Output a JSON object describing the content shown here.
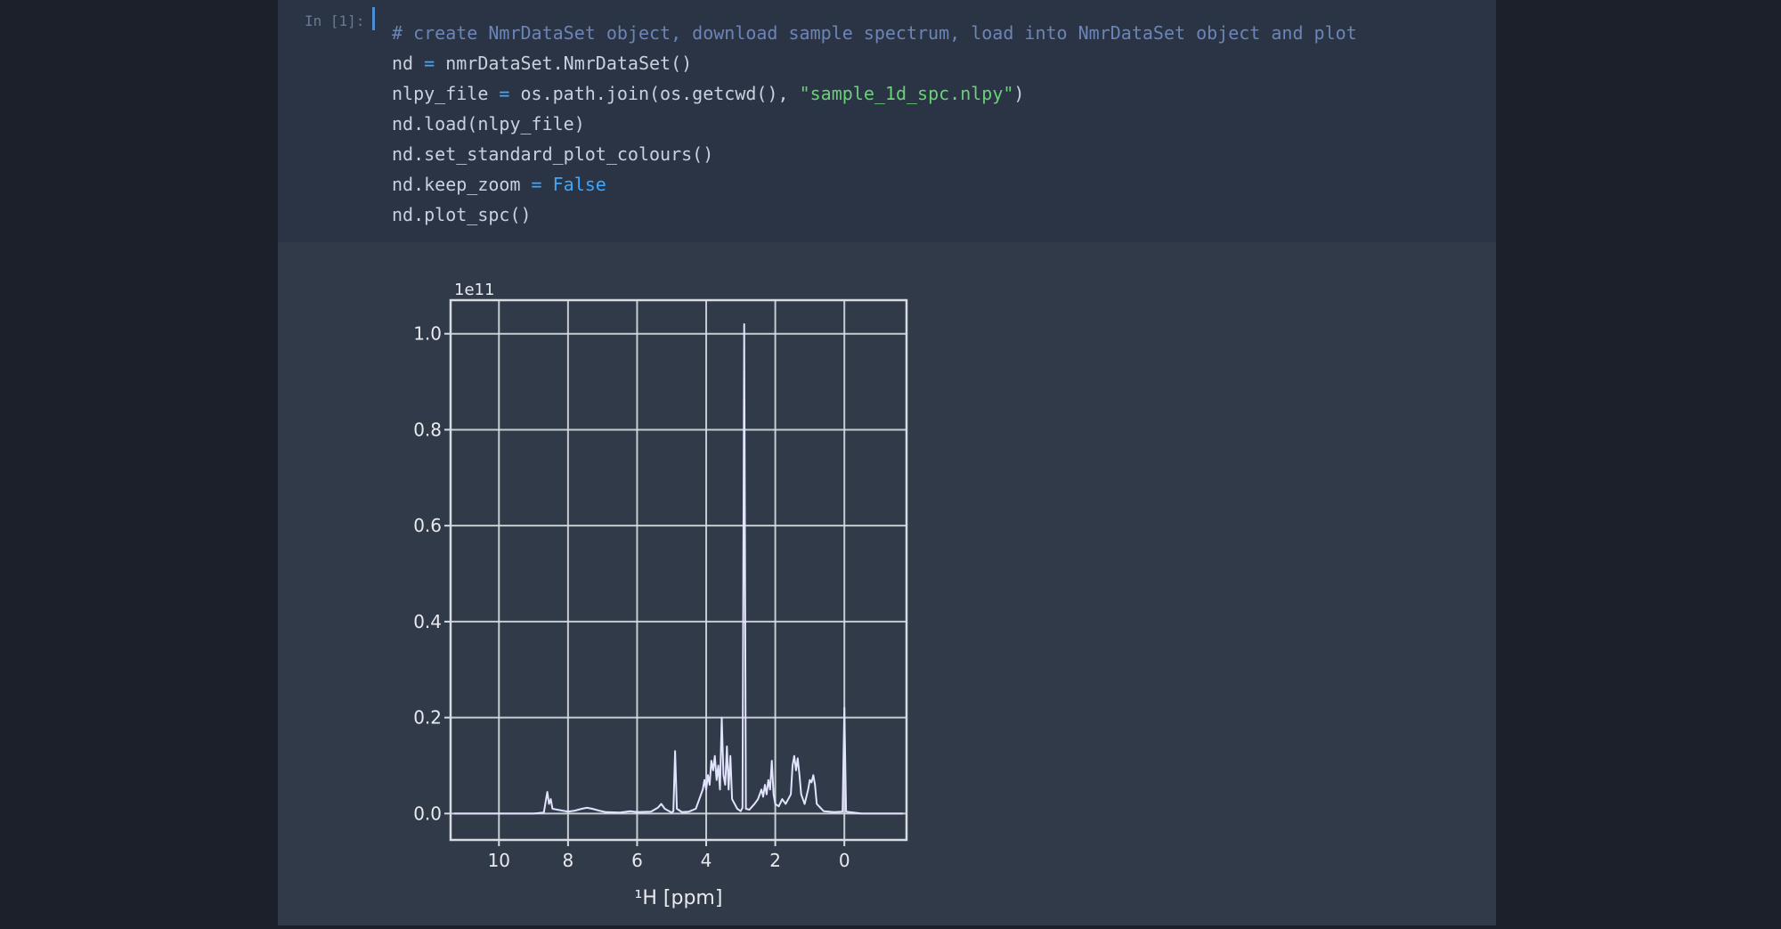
{
  "cell": {
    "prompt": "In [1]:",
    "code_lines": [
      [
        {
          "t": "comment",
          "v": "# create NmrDataSet object, download sample spectrum, load into NmrDataSet object and plot"
        }
      ],
      [
        {
          "t": "plain",
          "v": "nd "
        },
        {
          "t": "op",
          "v": "="
        },
        {
          "t": "plain",
          "v": " nmrDataSet.NmrDataSet()"
        }
      ],
      [
        {
          "t": "plain",
          "v": "nlpy_file "
        },
        {
          "t": "op",
          "v": "="
        },
        {
          "t": "plain",
          "v": " os.path.join(os.getcwd(), "
        },
        {
          "t": "str",
          "v": "\"sample_1d_spc.nlpy\""
        },
        {
          "t": "plain",
          "v": ")"
        }
      ],
      [
        {
          "t": "plain",
          "v": "nd.load(nlpy_file)"
        }
      ],
      [
        {
          "t": "plain",
          "v": "nd.set_standard_plot_colours()"
        }
      ],
      [
        {
          "t": "plain",
          "v": "nd.keep_zoom "
        },
        {
          "t": "op",
          "v": "="
        },
        {
          "t": "kw",
          "v": " False"
        }
      ],
      [
        {
          "t": "plain",
          "v": "nd.plot_spc()"
        }
      ]
    ]
  },
  "chart_data": {
    "type": "line",
    "title": "",
    "corner_label": "1e11",
    "xlabel": "¹H [ppm]",
    "ylabel": "",
    "xlim": [
      11.4,
      -1.8
    ],
    "ylim": [
      -0.055,
      1.07
    ],
    "x_ticks": [
      10,
      8,
      6,
      4,
      2,
      0
    ],
    "y_ticks": [
      0.0,
      0.2,
      0.4,
      0.6,
      0.8,
      1.0
    ],
    "y_tick_labels": [
      "0.0",
      "0.2",
      "0.4",
      "0.6",
      "0.8",
      "1.0"
    ],
    "grid": true,
    "colors": {
      "line": "#e2e4ff",
      "grid": "#d8dbe2",
      "axes": "#d8dbe2",
      "text": "#e8eaf0"
    },
    "series": [
      {
        "values": [
          [
            11.3,
            0.0
          ],
          [
            9.0,
            0.0
          ],
          [
            8.7,
            0.002
          ],
          [
            8.6,
            0.045
          ],
          [
            8.55,
            0.02
          ],
          [
            8.5,
            0.03
          ],
          [
            8.45,
            0.01
          ],
          [
            8.3,
            0.008
          ],
          [
            8.0,
            0.004
          ],
          [
            7.8,
            0.006
          ],
          [
            7.6,
            0.01
          ],
          [
            7.45,
            0.012
          ],
          [
            7.3,
            0.01
          ],
          [
            7.1,
            0.006
          ],
          [
            6.9,
            0.003
          ],
          [
            6.5,
            0.002
          ],
          [
            6.2,
            0.005
          ],
          [
            6.0,
            0.003
          ],
          [
            5.6,
            0.004
          ],
          [
            5.4,
            0.012
          ],
          [
            5.3,
            0.02
          ],
          [
            5.2,
            0.01
          ],
          [
            5.0,
            0.002
          ],
          [
            4.95,
            0.005
          ],
          [
            4.9,
            0.13
          ],
          [
            4.85,
            0.01
          ],
          [
            4.7,
            0.003
          ],
          [
            4.5,
            0.004
          ],
          [
            4.3,
            0.01
          ],
          [
            4.2,
            0.03
          ],
          [
            4.1,
            0.05
          ],
          [
            4.05,
            0.07
          ],
          [
            4.0,
            0.05
          ],
          [
            3.95,
            0.08
          ],
          [
            3.9,
            0.06
          ],
          [
            3.85,
            0.11
          ],
          [
            3.8,
            0.09
          ],
          [
            3.75,
            0.12
          ],
          [
            3.7,
            0.07
          ],
          [
            3.65,
            0.1
          ],
          [
            3.6,
            0.05
          ],
          [
            3.55,
            0.2
          ],
          [
            3.5,
            0.08
          ],
          [
            3.45,
            0.06
          ],
          [
            3.4,
            0.14
          ],
          [
            3.35,
            0.05
          ],
          [
            3.3,
            0.12
          ],
          [
            3.25,
            0.03
          ],
          [
            3.1,
            0.01
          ],
          [
            3.0,
            0.005
          ],
          [
            2.95,
            0.012
          ],
          [
            2.9,
            1.02
          ],
          [
            2.85,
            0.01
          ],
          [
            2.75,
            0.008
          ],
          [
            2.6,
            0.02
          ],
          [
            2.5,
            0.03
          ],
          [
            2.4,
            0.05
          ],
          [
            2.35,
            0.035
          ],
          [
            2.3,
            0.06
          ],
          [
            2.25,
            0.04
          ],
          [
            2.2,
            0.07
          ],
          [
            2.15,
            0.05
          ],
          [
            2.1,
            0.11
          ],
          [
            2.05,
            0.04
          ],
          [
            2.0,
            0.02
          ],
          [
            1.9,
            0.015
          ],
          [
            1.8,
            0.03
          ],
          [
            1.7,
            0.02
          ],
          [
            1.55,
            0.04
          ],
          [
            1.5,
            0.1
          ],
          [
            1.45,
            0.12
          ],
          [
            1.4,
            0.09
          ],
          [
            1.35,
            0.115
          ],
          [
            1.3,
            0.08
          ],
          [
            1.25,
            0.04
          ],
          [
            1.15,
            0.02
          ],
          [
            1.05,
            0.05
          ],
          [
            1.0,
            0.07
          ],
          [
            0.95,
            0.065
          ],
          [
            0.9,
            0.08
          ],
          [
            0.85,
            0.06
          ],
          [
            0.8,
            0.02
          ],
          [
            0.6,
            0.005
          ],
          [
            0.3,
            0.003
          ],
          [
            0.05,
            0.004
          ],
          [
            0.0,
            0.22
          ],
          [
            -0.05,
            0.004
          ],
          [
            -0.5,
            0.0
          ],
          [
            -1.7,
            0.0
          ]
        ]
      }
    ]
  }
}
